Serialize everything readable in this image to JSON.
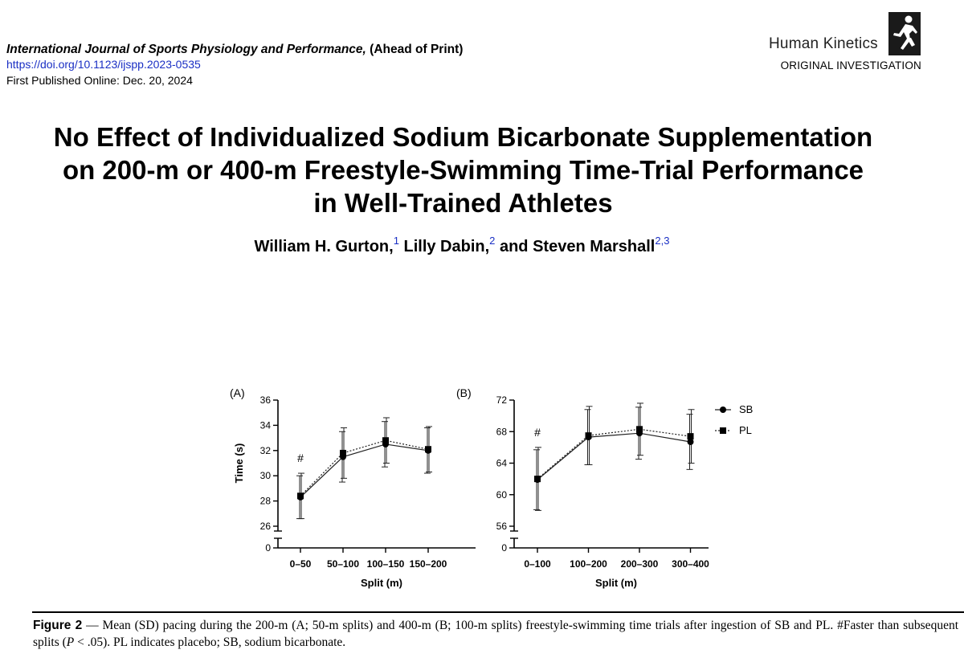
{
  "header": {
    "journal_name": "International Journal of Sports Physiology and Performance,",
    "journal_status": "(Ahead of Print)",
    "doi": "https://doi.org/10.1123/ijspp.2023-0535",
    "published": "First Published Online: Dec. 20, 2024",
    "publisher": "Human Kinetics",
    "section": "ORIGINAL INVESTIGATION",
    "logo_icon": "runner-logo-icon"
  },
  "article": {
    "title_line1": "No Effect of Individualized Sodium Bicarbonate Supplementation",
    "title_line2": "on 200-m or 400-m Freestyle-Swimming Time-Trial Performance",
    "title_line3": "in Well-Trained Athletes",
    "authors": [
      {
        "name": "William H. Gurton,",
        "aff": "1"
      },
      {
        "name": "Lilly Dabin,",
        "aff": "2"
      },
      {
        "name": "and Steven Marshall",
        "aff": "2,3"
      }
    ]
  },
  "chart_data": [
    {
      "type": "line",
      "panel": "(A)",
      "categories": [
        "0–50",
        "50–100",
        "100–150",
        "150–200"
      ],
      "series": [
        {
          "name": "SB",
          "marker": "circle",
          "line": "solid",
          "values": [
            28.3,
            31.5,
            32.5,
            32.0
          ],
          "sd": [
            1.7,
            2.0,
            1.8,
            1.8
          ]
        },
        {
          "name": "PL",
          "marker": "square",
          "line": "dotted",
          "values": [
            28.4,
            31.8,
            32.8,
            32.1
          ],
          "sd": [
            1.8,
            2.0,
            1.8,
            1.8
          ]
        }
      ],
      "yticks": [
        "0",
        "26",
        "28",
        "30",
        "32",
        "34",
        "36"
      ],
      "ylim": [
        26,
        36
      ],
      "axis_break": true,
      "xlabel": "Split (m)",
      "ylabel": "Time (s)",
      "annotation": "#",
      "annotation_category": "0–50"
    },
    {
      "type": "line",
      "panel": "(B)",
      "categories": [
        "0–100",
        "100–200",
        "200–300",
        "300–400"
      ],
      "series": [
        {
          "name": "SB",
          "marker": "circle",
          "line": "solid",
          "values": [
            61.9,
            67.3,
            67.8,
            66.7
          ],
          "sd": [
            3.8,
            3.5,
            3.3,
            3.5
          ]
        },
        {
          "name": "PL",
          "marker": "square",
          "line": "dotted",
          "values": [
            62.0,
            67.5,
            68.3,
            67.4
          ],
          "sd": [
            4.0,
            3.7,
            3.3,
            3.4
          ]
        }
      ],
      "yticks": [
        "0",
        "56",
        "60",
        "64",
        "68",
        "72"
      ],
      "ylim": [
        56,
        72
      ],
      "axis_break": true,
      "xlabel": "Split (m)",
      "ylabel": "",
      "annotation": "#",
      "annotation_category": "0–100",
      "legend": [
        "SB",
        "PL"
      ]
    }
  ],
  "figure": {
    "label": "Figure 2",
    "caption_part1": " — Mean (SD) pacing during the 200-m (A; 50-m splits) and 400-m (B; 100-m splits) freestyle-swimming time trials after ingestion of SB and PL. #Faster than subsequent splits (",
    "caption_p": "P",
    "caption_part2": " < .05). PL indicates placebo; SB, sodium bicarbonate."
  }
}
